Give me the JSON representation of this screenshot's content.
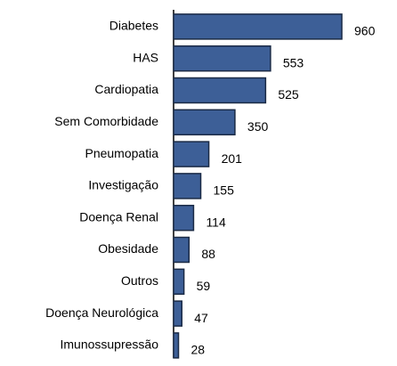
{
  "chart_data": {
    "type": "barh",
    "categories": [
      "Diabetes",
      "HAS",
      "Cardiopatia",
      "Sem Comorbidade",
      "Pneumopatia",
      "Investigação",
      "Doença Renal",
      "Obesidade",
      "Outros",
      "Doença Neurológica",
      "Imunossupressão"
    ],
    "values": [
      960,
      553,
      525,
      350,
      201,
      155,
      114,
      88,
      59,
      47,
      28
    ],
    "color": "#3d5f97"
  }
}
